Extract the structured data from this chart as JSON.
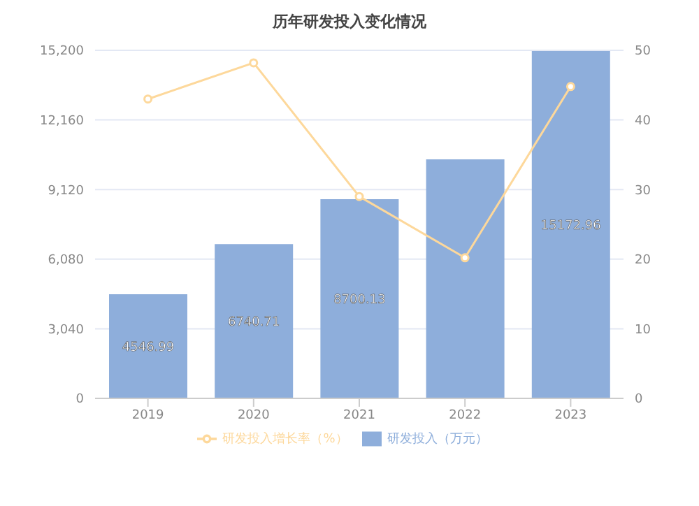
{
  "chart_data": {
    "type": "bar",
    "title": "历年研发投入变化情况",
    "categories": [
      "2019",
      "2020",
      "2021",
      "2022",
      "2023"
    ],
    "series": [
      {
        "name": "研发投入（万元）",
        "color": "#8eaedb",
        "values": [
          4546.99,
          6740.71,
          8700.13,
          10440,
          15172.96
        ],
        "value_labels": [
          "4546.99",
          "6740.71",
          "8700.13",
          null,
          "15172.96"
        ]
      },
      {
        "name": "研发投入增长率（%）",
        "type": "line",
        "axis": "y2",
        "color": "#fdd89b",
        "values": [
          43,
          48.2,
          29,
          20.2,
          44.8
        ]
      }
    ],
    "ylim": [
      0,
      15200
    ],
    "yticks": [
      {
        "value": 0,
        "label": "0"
      },
      {
        "value": 3040,
        "label": "3,040"
      },
      {
        "value": 6080,
        "label": "6,080"
      },
      {
        "value": 9120,
        "label": "9,120"
      },
      {
        "value": 12160,
        "label": "12,160"
      },
      {
        "value": 15200,
        "label": "15,200"
      }
    ],
    "y2lim": [
      0,
      50
    ],
    "y2ticks": [
      0,
      10,
      20,
      30,
      40,
      50
    ],
    "grid": "y",
    "legend": "bottom",
    "marker": "circle"
  }
}
